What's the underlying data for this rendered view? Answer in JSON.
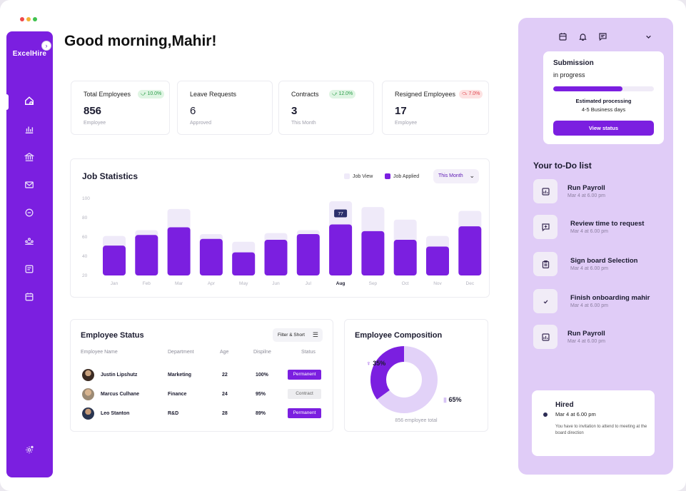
{
  "window": {
    "dot_colors": [
      "#ef4a4a",
      "#f2b233",
      "#3fc24e"
    ]
  },
  "sidebar": {
    "brand": "ExcelHire",
    "icons": [
      "home-icon",
      "bar-chart-icon",
      "bank-icon",
      "mail-icon",
      "message-icon",
      "team-icon",
      "document-icon",
      "calendar-icon",
      "settings-icon"
    ]
  },
  "greeting": "Good morning,Mahir!",
  "stats": [
    {
      "label": "Total Employees",
      "value": "856",
      "sub": "Employee",
      "badge": "10.0%",
      "trend": "up"
    },
    {
      "label": "Leave Requests",
      "value": "6",
      "sub": "Approved",
      "badge": "",
      "trend": ""
    },
    {
      "label": "Contracts",
      "value": "3",
      "sub": "This Month",
      "badge": "12.0%",
      "trend": "up"
    },
    {
      "label": "Resigned Employees",
      "value": "17",
      "sub": "Employee",
      "badge": "7.0%",
      "trend": "down"
    }
  ],
  "job_stats": {
    "title": "Job Statistics",
    "legend": {
      "view": "Job View",
      "applied": "Job Applied"
    },
    "period": "This Month",
    "tooltip": "77",
    "colors": {
      "view": "#efeaf9",
      "applied": "#7b1fe0"
    }
  },
  "chart_data": {
    "type": "bar",
    "categories": [
      "Jan",
      "Feb",
      "Mar",
      "Apr",
      "May",
      "Jun",
      "Jul",
      "Aug",
      "Sep",
      "Oct",
      "Nov",
      "Dec"
    ],
    "highlight": "Aug",
    "series": [
      {
        "name": "Job View",
        "values": [
          61,
          67,
          89,
          63,
          55,
          64,
          67,
          97,
          91,
          78,
          61,
          87
        ]
      },
      {
        "name": "Job Applied",
        "values": [
          51,
          62,
          70,
          58,
          44,
          57,
          63,
          73,
          66,
          57,
          50,
          71
        ]
      }
    ],
    "ylim": [
      20,
      100
    ],
    "yticks": [
      100,
      80,
      60,
      40,
      20
    ],
    "title": "Job Statistics",
    "xlabel": "",
    "ylabel": ""
  },
  "employee_status": {
    "title": "Employee Status",
    "filter_label": "Filter & Short",
    "columns": [
      "Employee Name",
      "Department",
      "Age",
      "Dispilne",
      "Status"
    ],
    "rows": [
      {
        "name": "Justin Lipshutz",
        "department": "Marketing",
        "age": "22",
        "discipline": "100%",
        "status": "Permanent"
      },
      {
        "name": "Marcus Culhane",
        "department": "Finance",
        "age": "24",
        "discipline": "95%",
        "status": "Contract"
      },
      {
        "name": "Leo Stanton",
        "department": "R&D",
        "age": "28",
        "discipline": "89%",
        "status": "Permanent"
      }
    ]
  },
  "composition": {
    "title": "Employee Composition",
    "female_pct": "35%",
    "male_pct": "65%",
    "female_value": 35,
    "male_value": 65,
    "total": "856 employee total",
    "colors": {
      "female": "#7b1fe0",
      "male": "#e2d2f8"
    }
  },
  "panel": {
    "submission": {
      "title": "Submission",
      "status": "in progress",
      "progress": 0.69,
      "estimate_title": "Estimated processing",
      "estimate_value": "4-5 Business days",
      "button": "View status"
    },
    "todo_title": "Your to-Do list",
    "todos": [
      {
        "title": "Run Payroll",
        "date": "Mar 4 at 6.00 pm",
        "icon": "payroll-icon"
      },
      {
        "title": "Review time to request",
        "date": "Mar 4 at 6.00 pm",
        "icon": "chat-plus-icon"
      },
      {
        "title": "Sign board Selection",
        "date": "Mar 4 at 6.00 pm",
        "icon": "clipboard-icon"
      },
      {
        "title": "Finish onboarding mahir",
        "date": "Mar 4 at 6.00 pm",
        "icon": "check-icon"
      },
      {
        "title": "Run Payroll",
        "date": "Mar 4 at 6.00 pm",
        "icon": "payroll-icon"
      }
    ],
    "hired": {
      "title": "Hired",
      "date": "Mar 4 at 6.00 pm",
      "message": "You have to invitation to attend to meeting at the board direction"
    }
  }
}
